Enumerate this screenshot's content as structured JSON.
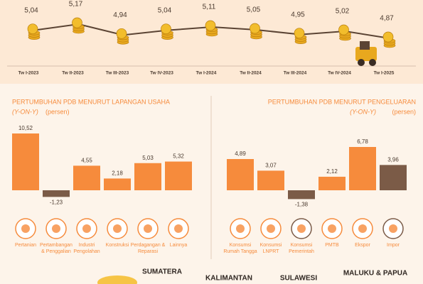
{
  "chart_data": [
    {
      "type": "line",
      "categories": [
        "Tw I-2023",
        "Tw II-2023",
        "Tw III-2023",
        "Tw IV-2023",
        "Tw I-2024",
        "Tw II-2024",
        "Tw III-2024",
        "Tw IV-2024",
        "Tw I-2025"
      ],
      "values": [
        5.04,
        5.17,
        4.94,
        5.04,
        5.11,
        5.05,
        4.95,
        5.02,
        4.87
      ],
      "value_labels": [
        "5,04",
        "5,17",
        "4,94",
        "5,04",
        "5,11",
        "5,05",
        "4,95",
        "5,02",
        "4,87"
      ],
      "color": "#5b4434"
    },
    {
      "type": "bar",
      "title": "PERTUMBUHAN PDB MENURUT LAPANGAN USAHA",
      "subtitle": "(Y-ON-Y)",
      "unit_label": "(persen)",
      "categories": [
        "Pertanian",
        "Pertambangan & Penggalian",
        "Industri Pengolahan",
        "Konstruksi",
        "Perdagangan & Reparasi",
        "Lainnya"
      ],
      "values": [
        10.52,
        -1.23,
        4.55,
        2.18,
        5.03,
        5.32
      ],
      "value_labels": [
        "10,52",
        "-1,23",
        "4,55",
        "2,18",
        "5,03",
        "5,32"
      ],
      "colors": [
        "#f68b3c",
        "#7b5b47",
        "#f68b3c",
        "#f68b3c",
        "#f68b3c",
        "#f68b3c"
      ]
    },
    {
      "type": "bar",
      "title": "PERTUMBUHAN PDB MENURUT PENGELUARAN",
      "subtitle": "(Y-ON-Y)",
      "unit_label": "(persen)",
      "categories": [
        "Konsumsi Rumah Tangga",
        "Konsumsi LNPRT",
        "Konsumsi Pemerintah",
        "PMTB",
        "Ekspor",
        "Impor"
      ],
      "values": [
        4.89,
        3.07,
        -1.38,
        2.12,
        6.78,
        3.96
      ],
      "value_labels": [
        "4,89",
        "3,07",
        "-1,38",
        "2,12",
        "6,78",
        "3,96"
      ],
      "colors": [
        "#f68b3c",
        "#f68b3c",
        "#7b5b47",
        "#f68b3c",
        "#f68b3c",
        "#7b5b47"
      ]
    }
  ],
  "regions": [
    "SUMATERA",
    "KALIMANTAN",
    "SULAWESI",
    "MALUKU & PAPUA"
  ]
}
